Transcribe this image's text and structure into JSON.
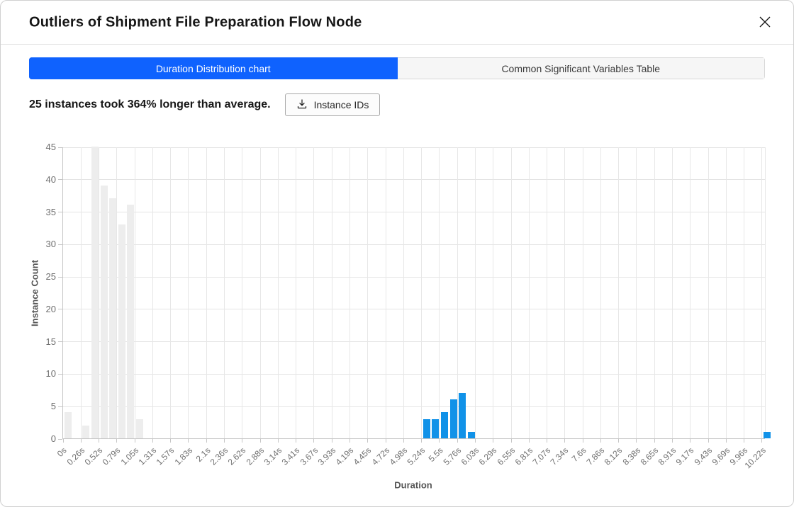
{
  "modal": {
    "title": "Outliers of Shipment File Preparation Flow Node"
  },
  "tabs": [
    {
      "label": "Duration Distribution chart",
      "active": true
    },
    {
      "label": "Common Significant Variables Table",
      "active": false
    }
  ],
  "summary": {
    "text": "25 instances took 364% longer than average.",
    "button_label": "Instance IDs"
  },
  "colors": {
    "accent_blue": "#0f62fe",
    "bar_blue": "#1192e8",
    "bar_gray": "#ededed",
    "grid": "#e4e4e4",
    "axis": "#c6c6c6",
    "tick_text": "#6f6f6f",
    "axis_title_text": "#565656"
  },
  "chart_data": {
    "type": "bar",
    "title": "",
    "xlabel": "Duration",
    "ylabel": "Instance Count",
    "ylim": [
      0,
      45
    ],
    "yticks": [
      0,
      5,
      10,
      15,
      20,
      25,
      30,
      35,
      40,
      45
    ],
    "grid": true,
    "x_tick_labels": [
      "0s",
      "0.26s",
      "0.52s",
      "0.79s",
      "1.05s",
      "1.31s",
      "1.57s",
      "1.83s",
      "2.1s",
      "2.36s",
      "2.62s",
      "2.88s",
      "3.14s",
      "3.41s",
      "3.67s",
      "3.93s",
      "4.19s",
      "4.45s",
      "4.72s",
      "4.98s",
      "5.24s",
      "5.5s",
      "5.76s",
      "6.03s",
      "6.29s",
      "6.55s",
      "6.81s",
      "7.07s",
      "7.34s",
      "7.6s",
      "7.86s",
      "8.12s",
      "8.38s",
      "8.65s",
      "8.91s",
      "9.17s",
      "9.43s",
      "9.69s",
      "9.96s",
      "10.22s"
    ],
    "tick_interval_s": 0.262,
    "bars": [
      {
        "t": 0,
        "duration": "0s",
        "count": 4,
        "series": "normal"
      },
      {
        "t": 1,
        "duration": "0.26s",
        "count": 2,
        "series": "normal"
      },
      {
        "t": 1.5,
        "duration": "0.39s",
        "count": 45,
        "series": "normal"
      },
      {
        "t": 2,
        "duration": "0.52s",
        "count": 39,
        "series": "normal"
      },
      {
        "t": 2.5,
        "duration": "0.66s",
        "count": 37,
        "series": "normal"
      },
      {
        "t": 3,
        "duration": "0.79s",
        "count": 33,
        "series": "normal"
      },
      {
        "t": 3.5,
        "duration": "0.92s",
        "count": 36,
        "series": "normal"
      },
      {
        "t": 4,
        "duration": "1.05s",
        "count": 3,
        "series": "normal"
      },
      {
        "t": 20,
        "duration": "5.24s",
        "count": 3,
        "series": "outlier"
      },
      {
        "t": 20.5,
        "duration": "5.37s",
        "count": 3,
        "series": "outlier"
      },
      {
        "t": 21,
        "duration": "5.5s",
        "count": 4,
        "series": "outlier"
      },
      {
        "t": 21.5,
        "duration": "5.63s",
        "count": 6,
        "series": "outlier"
      },
      {
        "t": 22,
        "duration": "5.76s",
        "count": 7,
        "series": "outlier"
      },
      {
        "t": 22.5,
        "duration": "5.89s",
        "count": 1,
        "series": "outlier"
      },
      {
        "t": 39,
        "duration": "10.22s",
        "count": 1,
        "series": "outlier"
      }
    ],
    "series_colors": {
      "normal": "#ededed",
      "outlier": "#1192e8"
    }
  }
}
